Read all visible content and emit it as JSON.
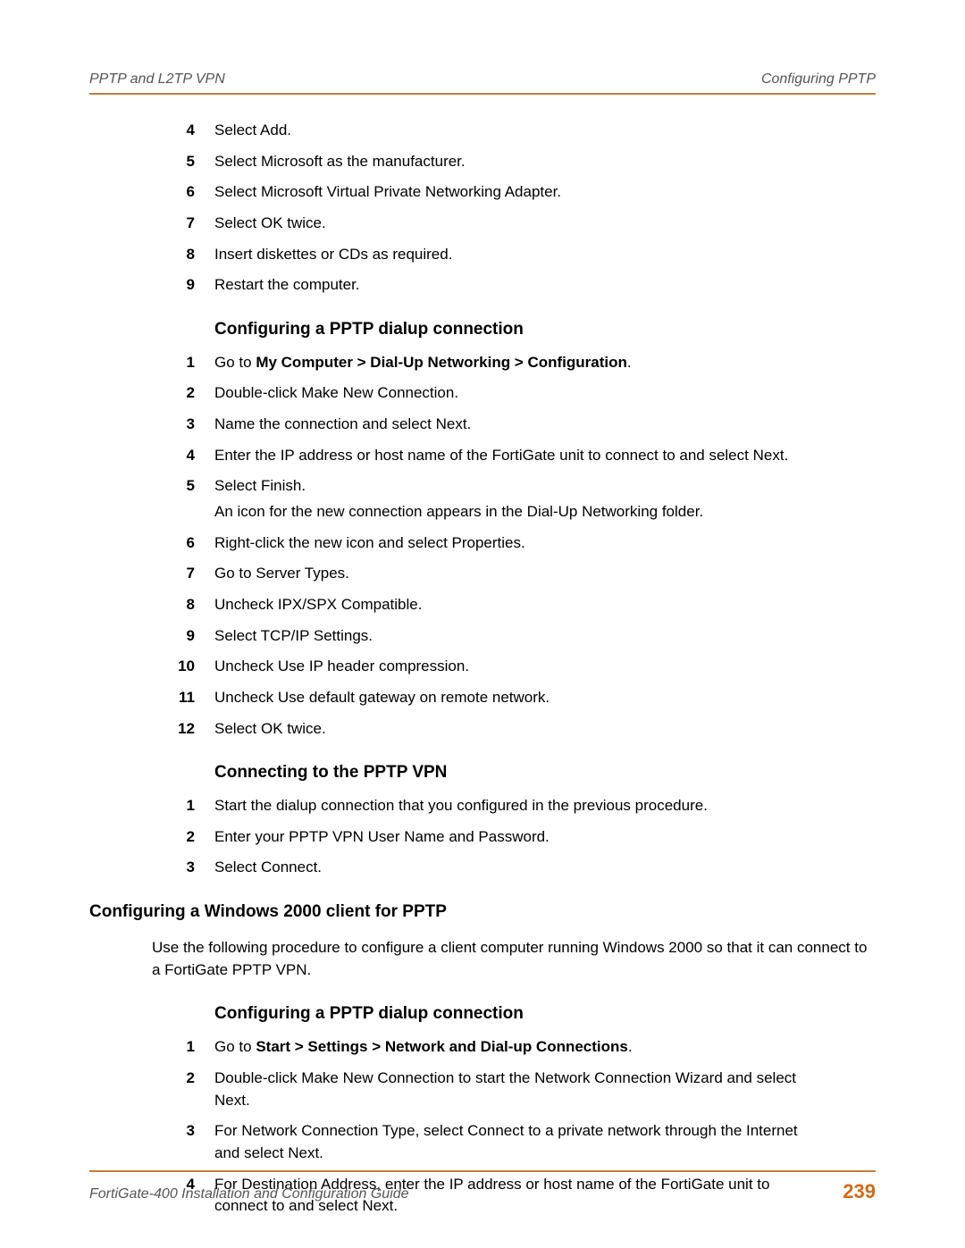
{
  "header": {
    "left": "PPTP and L2TP VPN",
    "right": "Configuring PPTP"
  },
  "colors": {
    "rule": "#c77a3a",
    "pagenum": "#cf6b17",
    "header_text": "#555555"
  },
  "list1": {
    "start": 4,
    "items": [
      "Select Add.",
      "Select Microsoft as the manufacturer.",
      "Select Microsoft Virtual Private Networking Adapter.",
      "Select OK twice.",
      "Insert diskettes or CDs as required.",
      "Restart the computer."
    ]
  },
  "heading1": "Configuring a PPTP dialup connection",
  "list2": {
    "start": 1,
    "items": [
      {
        "pre": "Go to ",
        "bold": "My Computer > Dial-Up Networking > Configuration",
        "post": "."
      },
      "Double-click Make New Connection.",
      "Name the connection and select Next.",
      "Enter the IP address or host name of the FortiGate unit to connect to and select Next.",
      {
        "main": "Select Finish.",
        "sub": "An icon for the new connection appears in the Dial-Up Networking folder."
      },
      "Right-click the new icon and select Properties.",
      "Go to Server Types.",
      "Uncheck IPX/SPX Compatible.",
      "Select TCP/IP Settings.",
      "Uncheck Use IP header compression.",
      "Uncheck Use default gateway on remote network.",
      "Select OK twice."
    ]
  },
  "heading2": "Connecting to the PPTP VPN",
  "list3": {
    "start": 1,
    "items": [
      "Start the dialup connection that you configured in the previous procedure.",
      "Enter your PPTP VPN User Name and Password.",
      "Select Connect."
    ]
  },
  "heading_main": "Configuring a Windows 2000 client for PPTP",
  "para1": "Use the following procedure to configure a client computer running Windows 2000 so that it can connect to a FortiGate PPTP VPN.",
  "heading3": "Configuring a PPTP dialup connection",
  "list4": {
    "start": 1,
    "items": [
      {
        "pre": "Go to ",
        "bold": "Start > Settings > Network and Dial-up Connections",
        "post": "."
      },
      "Double-click Make New Connection to start the Network Connection Wizard and select Next.",
      "For Network Connection Type, select Connect to a private network through the Internet and select Next.",
      "For Destination Address, enter the IP address or host name of the FortiGate unit to connect to and select Next."
    ]
  },
  "footer": {
    "left": "FortiGate-400 Installation and Configuration Guide",
    "pagenum": "239"
  }
}
